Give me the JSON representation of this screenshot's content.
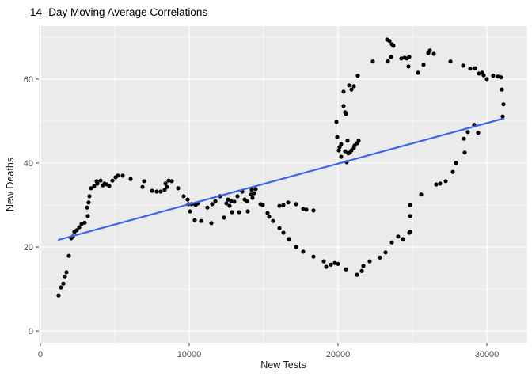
{
  "chart_data": {
    "type": "scatter",
    "title": "14 -Day Moving Average Correlations",
    "xlabel": "New Tests",
    "ylabel": "New Deaths",
    "legend": "none",
    "grid": "major-and-minor",
    "xlim": [
      -106,
      32712
    ],
    "ylim": [
      -2.8,
      72.6
    ],
    "x_ticks": [
      0,
      10000,
      20000,
      30000
    ],
    "x_tick_labels": [
      "0",
      "10000",
      "20000",
      "30000"
    ],
    "x_minor_ticks": [
      5000,
      15000,
      25000
    ],
    "y_ticks": [
      0,
      20,
      40,
      60
    ],
    "y_tick_labels": [
      "0",
      "20",
      "40",
      "60"
    ],
    "y_minor_ticks": [
      10,
      30,
      50,
      70
    ],
    "colors": {
      "title": "#000000",
      "axis_title": "#1a1a1a",
      "tick_label": "#4d4d4d",
      "tick_mark": "#333333",
      "panel_background": "#ebebeb",
      "grid": "#ffffff",
      "point": "#000000",
      "trend_line": "#3b62ec"
    },
    "trend_line": {
      "x1": 1224,
      "y1": 21.7,
      "x2": 31117,
      "y2": 50.6
    },
    "points": [
      [
        1224,
        8.5
      ],
      [
        1383,
        10.4
      ],
      [
        1543,
        11.3
      ],
      [
        1649,
        13.0
      ],
      [
        1756,
        14.0
      ],
      [
        1915,
        17.9
      ],
      [
        2075,
        22.1
      ],
      [
        2181,
        22.5
      ],
      [
        2288,
        23.6
      ],
      [
        2447,
        24.0
      ],
      [
        2607,
        24.7
      ],
      [
        2766,
        25.5
      ],
      [
        2979,
        25.8
      ],
      [
        3192,
        27.4
      ],
      [
        3139,
        29.4
      ],
      [
        3245,
        30.6
      ],
      [
        3298,
        32.1
      ],
      [
        3405,
        34.0
      ],
      [
        3617,
        34.5
      ],
      [
        3777,
        35.7
      ],
      [
        3830,
        35.1
      ],
      [
        4043,
        35.8
      ],
      [
        4202,
        34.7
      ],
      [
        4309,
        35.1
      ],
      [
        4468,
        34.9
      ],
      [
        4628,
        34.5
      ],
      [
        4840,
        35.8
      ],
      [
        5053,
        36.6
      ],
      [
        5213,
        37.0
      ],
      [
        5532,
        37.0
      ],
      [
        6064,
        36.2
      ],
      [
        6862,
        34.3
      ],
      [
        6968,
        35.7
      ],
      [
        7500,
        33.4
      ],
      [
        7819,
        33.2
      ],
      [
        8085,
        33.2
      ],
      [
        8351,
        33.6
      ],
      [
        8404,
        35.1
      ],
      [
        8511,
        34.3
      ],
      [
        8617,
        35.8
      ],
      [
        8830,
        35.7
      ],
      [
        9255,
        34.0
      ],
      [
        9628,
        32.1
      ],
      [
        9894,
        31.3
      ],
      [
        9947,
        30.2
      ],
      [
        10053,
        28.5
      ],
      [
        10426,
        30.0
      ],
      [
        10798,
        26.2
      ],
      [
        10160,
        30.2
      ],
      [
        10372,
        26.4
      ],
      [
        10585,
        30.4
      ],
      [
        11223,
        29.4
      ],
      [
        11489,
        25.7
      ],
      [
        11543,
        30.2
      ],
      [
        11755,
        30.9
      ],
      [
        12074,
        32.1
      ],
      [
        12340,
        27.0
      ],
      [
        12500,
        30.4
      ],
      [
        12606,
        31.3
      ],
      [
        12713,
        29.8
      ],
      [
        12819,
        30.9
      ],
      [
        12872,
        28.3
      ],
      [
        13032,
        30.8
      ],
      [
        13245,
        32.1
      ],
      [
        13351,
        28.3
      ],
      [
        13564,
        33.2
      ],
      [
        13723,
        31.3
      ],
      [
        13883,
        30.9
      ],
      [
        13936,
        28.5
      ],
      [
        14149,
        32.5
      ],
      [
        14202,
        33.6
      ],
      [
        14255,
        31.7
      ],
      [
        14362,
        32.8
      ],
      [
        14468,
        33.8
      ],
      [
        14787,
        30.2
      ],
      [
        14947,
        30.0
      ],
      [
        15266,
        28.1
      ],
      [
        15372,
        27.2
      ],
      [
        15638,
        26.2
      ],
      [
        16064,
        29.8
      ],
      [
        16330,
        30.0
      ],
      [
        16649,
        30.6
      ],
      [
        17181,
        30.2
      ],
      [
        17660,
        29.1
      ],
      [
        17872,
        28.9
      ],
      [
        18351,
        28.7
      ],
      [
        16064,
        24.5
      ],
      [
        16330,
        23.4
      ],
      [
        16702,
        21.9
      ],
      [
        17181,
        20.0
      ],
      [
        17660,
        18.9
      ],
      [
        18351,
        17.7
      ],
      [
        19043,
        16.6
      ],
      [
        19202,
        15.3
      ],
      [
        19521,
        15.8
      ],
      [
        19787,
        16.2
      ],
      [
        20000,
        16.0
      ],
      [
        20532,
        14.7
      ],
      [
        21277,
        13.4
      ],
      [
        21596,
        14.3
      ],
      [
        21702,
        15.5
      ],
      [
        22128,
        16.6
      ],
      [
        22819,
        17.5
      ],
      [
        23191,
        18.7
      ],
      [
        23617,
        21.1
      ],
      [
        24043,
        22.5
      ],
      [
        24362,
        21.9
      ],
      [
        24787,
        23.4
      ],
      [
        24840,
        23.6
      ],
      [
        24840,
        27.4
      ],
      [
        24840,
        30.0
      ],
      [
        25585,
        32.5
      ],
      [
        26596,
        34.9
      ],
      [
        26862,
        35.1
      ],
      [
        27234,
        35.7
      ],
      [
        27713,
        37.9
      ],
      [
        27926,
        40.0
      ],
      [
        28511,
        42.5
      ],
      [
        28457,
        45.8
      ],
      [
        28723,
        47.4
      ],
      [
        29149,
        49.1
      ],
      [
        29415,
        47.2
      ],
      [
        19894,
        49.8
      ],
      [
        19947,
        46.2
      ],
      [
        20053,
        43.0
      ],
      [
        20106,
        43.8
      ],
      [
        20213,
        44.5
      ],
      [
        20213,
        41.5
      ],
      [
        20372,
        53.6
      ],
      [
        20479,
        52.1
      ],
      [
        20479,
        42.8
      ],
      [
        20532,
        51.7
      ],
      [
        20585,
        40.2
      ],
      [
        20638,
        45.3
      ],
      [
        20691,
        42.3
      ],
      [
        20798,
        42.5
      ],
      [
        20904,
        43.0
      ],
      [
        20904,
        57.5
      ],
      [
        21064,
        43.6
      ],
      [
        21117,
        44.2
      ],
      [
        21277,
        44.7
      ],
      [
        21383,
        45.3
      ],
      [
        20372,
        57.0
      ],
      [
        20745,
        58.5
      ],
      [
        21064,
        58.3
      ],
      [
        21330,
        60.8
      ],
      [
        22340,
        64.2
      ],
      [
        23298,
        69.4
      ],
      [
        23457,
        69.1
      ],
      [
        23617,
        68.3
      ],
      [
        23723,
        67.9
      ],
      [
        23351,
        64.2
      ],
      [
        23564,
        65.3
      ],
      [
        24255,
        64.9
      ],
      [
        24468,
        65.1
      ],
      [
        24628,
        64.9
      ],
      [
        24787,
        65.3
      ],
      [
        24734,
        63.0
      ],
      [
        25372,
        61.5
      ],
      [
        25745,
        63.4
      ],
      [
        26064,
        66.2
      ],
      [
        26170,
        66.8
      ],
      [
        26436,
        66.0
      ],
      [
        27553,
        64.2
      ],
      [
        28404,
        63.2
      ],
      [
        28883,
        62.5
      ],
      [
        29202,
        62.6
      ],
      [
        29468,
        61.3
      ],
      [
        29681,
        61.5
      ],
      [
        29787,
        60.9
      ],
      [
        30000,
        60.0
      ],
      [
        30426,
        60.8
      ],
      [
        30745,
        60.6
      ],
      [
        30957,
        60.4
      ],
      [
        31064,
        51.1
      ],
      [
        31117,
        54.0
      ],
      [
        31011,
        57.5
      ]
    ]
  }
}
